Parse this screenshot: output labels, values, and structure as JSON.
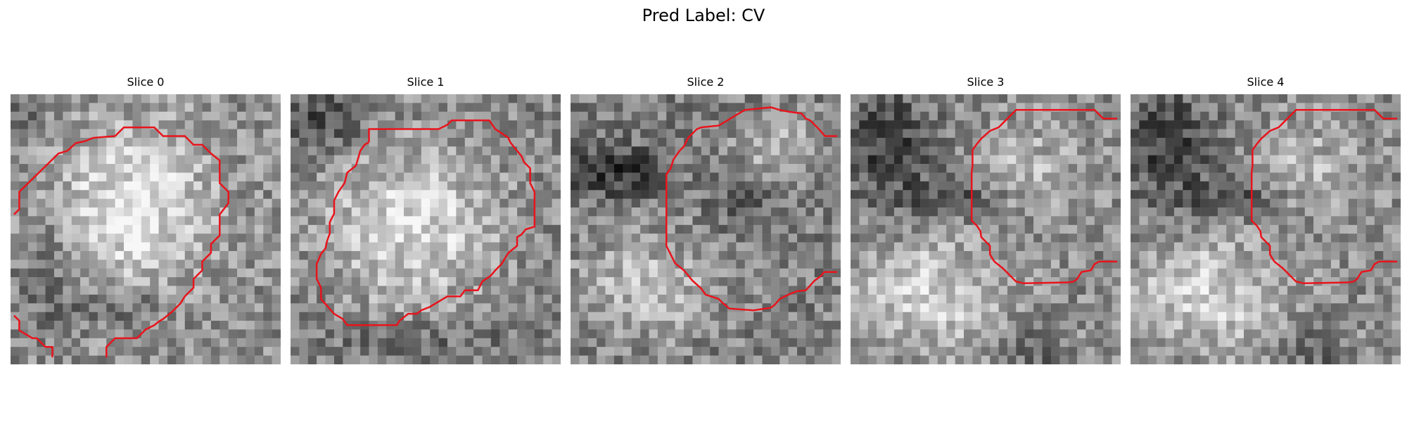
{
  "figure": {
    "title": "Pred Label: CV",
    "contour_color": "#e8141c"
  },
  "slices": [
    {
      "title": "Slice 0"
    },
    {
      "title": "Slice 1"
    },
    {
      "title": "Slice 2"
    },
    {
      "title": "Slice 3"
    },
    {
      "title": "Slice 4"
    }
  ]
}
